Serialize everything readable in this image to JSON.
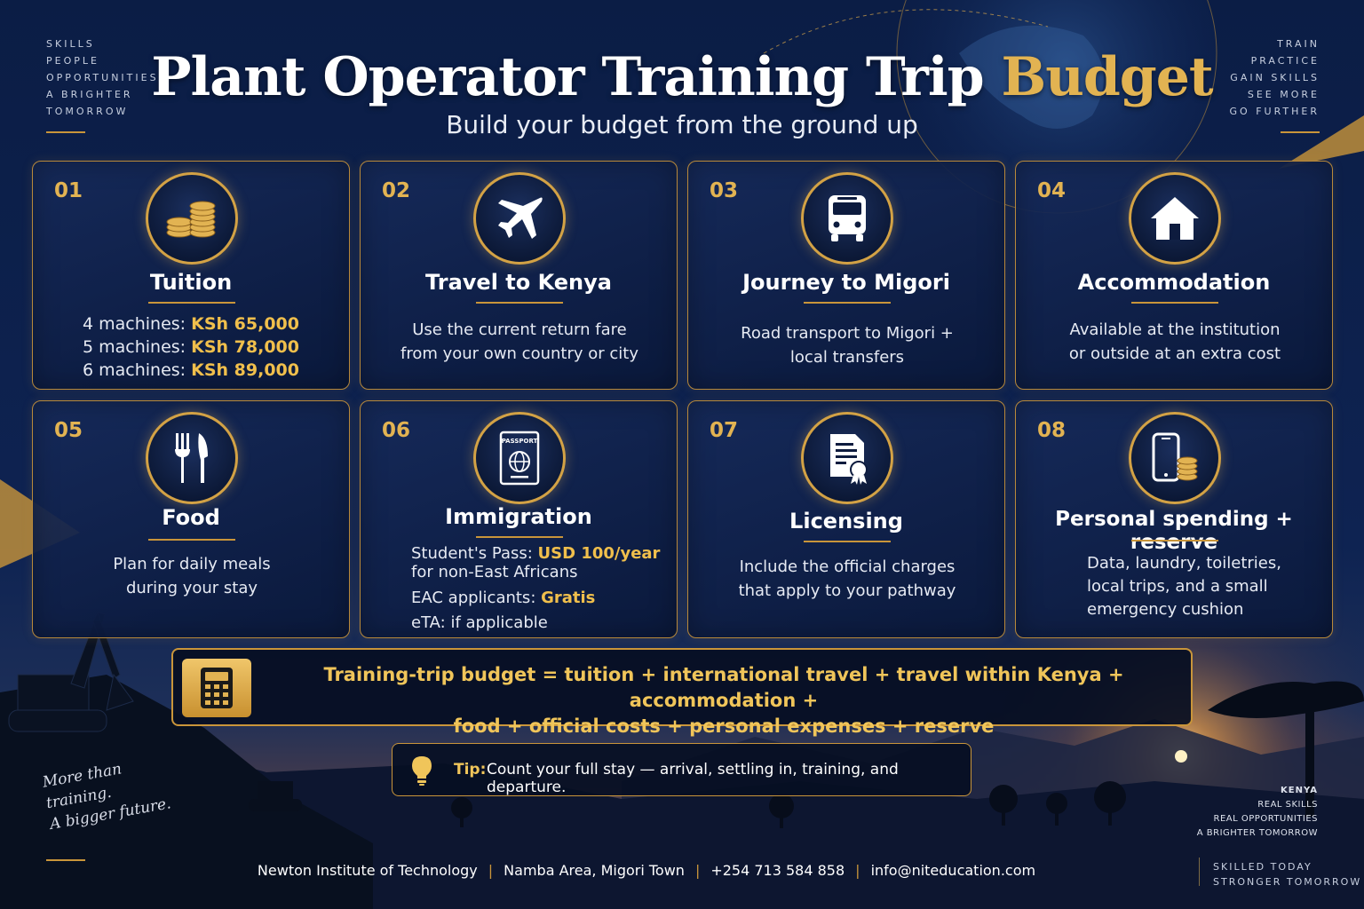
{
  "header": {
    "title_main": "Plant Operator Training Trip ",
    "title_accent": "Budget",
    "subtitle": "Build your budget from the ground up"
  },
  "left_words": [
    "SKILLS",
    "PEOPLE",
    "OPPORTUNITIES",
    "A BRIGHTER",
    "TOMORROW"
  ],
  "right_words": [
    "TRAIN",
    "PRACTICE",
    "GAIN SKILLS",
    "SEE MORE",
    "GO FURTHER"
  ],
  "cards": [
    {
      "num": "01",
      "icon": "coins-icon",
      "title": "Tuition",
      "lines": [
        {
          "label": "4 machines: ",
          "value": "KSh 65,000"
        },
        {
          "label": "5 machines: ",
          "value": "KSh 78,000"
        },
        {
          "label": "6 machines: ",
          "value": "KSh 89,000"
        }
      ]
    },
    {
      "num": "02",
      "icon": "airplane-icon",
      "title": "Travel to Kenya",
      "desc_1": "Use the current return fare",
      "desc_2": "from your own country or city"
    },
    {
      "num": "03",
      "icon": "bus-icon",
      "title": "Journey to Migori",
      "desc_1": "Road transport to Migori +",
      "desc_2": "local transfers"
    },
    {
      "num": "04",
      "icon": "house-icon",
      "title": "Accommodation",
      "desc_1": "Available at the institution",
      "desc_2": "or outside at an extra cost"
    },
    {
      "num": "05",
      "icon": "fork-knife-icon",
      "title": "Food",
      "desc_1": "Plan for daily meals",
      "desc_2": "during your stay"
    },
    {
      "num": "06",
      "icon": "passport-icon",
      "icon_text": "PASSPORT",
      "title": "Immigration",
      "pass_label": "Student's Pass: ",
      "pass_value": "USD 100/year",
      "pass_note": "for non-East Africans",
      "eac_label": "EAC applicants: ",
      "eac_value": "Gratis",
      "eta": "eTA: if applicable"
    },
    {
      "num": "07",
      "icon": "certificate-icon",
      "title": "Licensing",
      "desc_1": "Include the official charges",
      "desc_2": "that apply to your pathway"
    },
    {
      "num": "08",
      "icon": "phone-coins-icon",
      "title": "Personal spending + reserve",
      "desc_1": "Data, laundry, toiletries,",
      "desc_2": "local trips, and a small",
      "desc_3": "emergency cushion"
    }
  ],
  "formula": {
    "line_1": "Training-trip budget = tuition +  international travel  + travel within Kenya + accommodation +",
    "line_2": "food + official costs + personal expenses + reserve"
  },
  "tip": {
    "label": "Tip:",
    "text": "Count your full stay — arrival, settling in, training, and departure."
  },
  "script_words": [
    "More than",
    "training.",
    "A bigger future."
  ],
  "kenya_words": [
    "KENYA",
    "REAL SKILLS",
    "REAL OPPORTUNITIES",
    "A BRIGHTER TOMORROW"
  ],
  "footer": {
    "institute": "Newton Institute of Technology",
    "location": "Namba Area, Migori Town",
    "phone": "+254 713 584 858",
    "email": "info@niteducation.com"
  },
  "skilled_words": [
    "SKILLED TODAY",
    "STRONGER TOMORROW"
  ],
  "colors": {
    "gold": "#e2b352",
    "navy": "#0a1a3a",
    "text": "#ffffff"
  }
}
